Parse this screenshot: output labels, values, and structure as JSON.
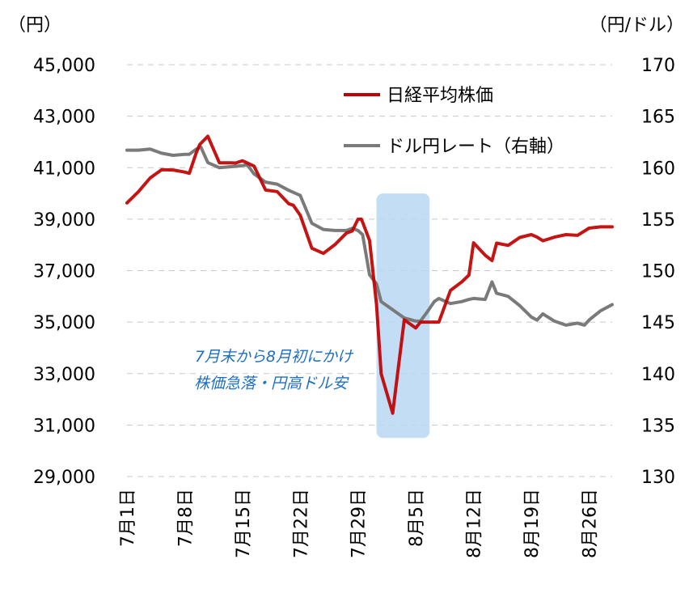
{
  "chart_data": {
    "type": "line",
    "ylabel_left": "（円）",
    "ylabel_right": "（円/ドル）",
    "ylim_left": [
      29000,
      45000
    ],
    "ylim_right": [
      130,
      170
    ],
    "yticks_left": [
      "45,000",
      "43,000",
      "41,000",
      "39,000",
      "37,000",
      "35,000",
      "33,000",
      "31,000",
      "29,000"
    ],
    "yticks_right": [
      "170",
      "165",
      "160",
      "155",
      "150",
      "145",
      "140",
      "135",
      "130"
    ],
    "x_tick_labels": [
      "7月1日",
      "7月8日",
      "7月15日",
      "7月22日",
      "7月29日",
      "8月5日",
      "8月12日",
      "8月19日",
      "8月26日"
    ],
    "x_tick_positions": [
      0,
      5,
      10,
      15,
      20,
      25,
      30,
      35,
      40
    ],
    "grid": true,
    "legend_position": "top-right",
    "series": [
      {
        "name": "日経平均株価",
        "axis": "left",
        "color": "#c00000",
        "x": [
          0,
          1,
          2,
          3,
          4,
          5,
          5.4,
          6,
          6.3,
          7,
          8,
          9,
          9.4,
          10,
          11,
          12,
          13,
          14,
          14.4,
          15,
          16,
          17,
          18,
          19,
          19.5,
          20,
          20.3,
          21,
          21.6,
          22,
          23,
          24,
          25,
          25.4,
          26,
          26.5,
          27,
          28,
          29,
          29.6,
          30,
          31,
          31.6,
          32,
          33,
          34,
          35,
          35.5,
          36,
          37,
          38,
          39,
          40,
          41,
          42
        ],
        "y": [
          39630,
          40070,
          40600,
          40920,
          40910,
          40830,
          40780,
          41580,
          41900,
          42220,
          41190,
          41190,
          41180,
          41270,
          41060,
          40130,
          40070,
          39600,
          39540,
          39150,
          37870,
          37670,
          38010,
          38460,
          38540,
          39000,
          39000,
          38170,
          35680,
          33000,
          31460,
          35090,
          34770,
          35000,
          35000,
          35000,
          35000,
          36230,
          36570,
          36830,
          38080,
          37600,
          37390,
          38070,
          37980,
          38290,
          38400,
          38300,
          38160,
          38300,
          38400,
          38370,
          38650,
          38700,
          38700
        ]
      },
      {
        "name": "ドル円レート（右軸）",
        "axis": "right",
        "color": "#7a7a7a",
        "x": [
          0,
          1,
          2,
          3,
          4,
          5,
          5.4,
          6,
          6.4,
          7,
          8,
          9,
          10,
          10.4,
          11,
          12,
          13,
          14,
          15,
          16,
          17,
          18,
          19,
          19.5,
          20,
          20.4,
          21,
          21.6,
          22,
          23,
          24,
          25,
          25.4,
          26,
          26.6,
          27,
          28,
          29,
          29.6,
          30,
          31,
          31.6,
          32,
          33,
          34,
          35,
          35.5,
          36,
          37,
          38,
          39,
          39.6,
          40,
          41,
          42
        ],
        "y": [
          161.7,
          161.7,
          161.8,
          161.4,
          161.2,
          161.3,
          161.3,
          161.8,
          162.0,
          160.5,
          160.0,
          160.1,
          160.2,
          160.3,
          159.4,
          158.6,
          158.4,
          157.8,
          157.3,
          154.6,
          154.0,
          153.9,
          153.9,
          154.1,
          153.9,
          153.5,
          149.6,
          148.7,
          147.0,
          146.2,
          145.4,
          145.1,
          145.1,
          146.0,
          147.0,
          147.3,
          146.8,
          147.0,
          147.2,
          147.3,
          147.2,
          148.9,
          147.8,
          147.5,
          146.6,
          145.5,
          145.2,
          145.8,
          145.1,
          144.7,
          144.9,
          144.7,
          145.2,
          146.1,
          146.7
        ]
      }
    ],
    "annotations": [
      {
        "x_range": [
          21.6,
          26.2
        ],
        "y_range_left": [
          30500,
          40000
        ],
        "color": "#b8d7f2"
      }
    ],
    "annotation_text": [
      "7月末から8月初にかけ",
      "株価急落・円高ドル安"
    ]
  }
}
